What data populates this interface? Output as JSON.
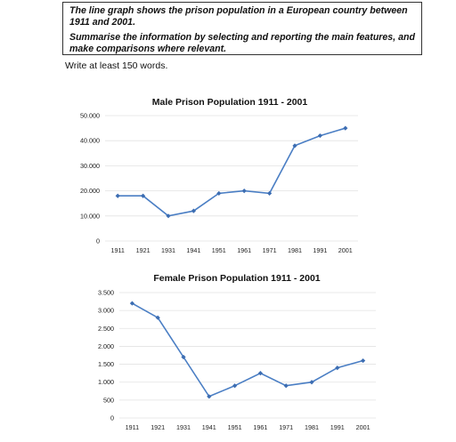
{
  "prompt": {
    "line1": "The line graph shows the prison population in a European country between 1911 and 2001.",
    "line2": "Summarise the information by selecting and reporting the main features, and make comparisons where relevant."
  },
  "instruction": "Write at least 150 words.",
  "colors": {
    "line": "#4a7ec4",
    "marker": "#3c6db2",
    "grid": "#e2e2e2"
  },
  "chart_data": [
    {
      "type": "line",
      "title": "Male Prison Population 1911 - 2001",
      "xlabel": "",
      "ylabel": "",
      "x": [
        "1911",
        "1921",
        "1931",
        "1941",
        "1951",
        "1961",
        "1971",
        "1981",
        "1991",
        "2001"
      ],
      "values": [
        18000,
        18000,
        10000,
        12000,
        19000,
        20000,
        19000,
        38000,
        42000,
        45000
      ],
      "ylim": [
        0,
        50000
      ],
      "yticks": [
        0,
        10000,
        20000,
        30000,
        40000,
        50000
      ],
      "ytick_labels": [
        "0",
        "10.000",
        "20.000",
        "30.000",
        "40.000",
        "50.000"
      ],
      "grid": true,
      "legend": "none"
    },
    {
      "type": "line",
      "title": "Female Prison Population 1911 - 2001",
      "xlabel": "",
      "ylabel": "",
      "x": [
        "1911",
        "1921",
        "1931",
        "1941",
        "1951",
        "1961",
        "1971",
        "1981",
        "1991",
        "2001"
      ],
      "values": [
        3200,
        2800,
        1700,
        600,
        900,
        1250,
        900,
        1000,
        1400,
        1600
      ],
      "ylim": [
        0,
        3500
      ],
      "yticks": [
        0,
        500,
        1000,
        1500,
        2000,
        2500,
        3000,
        3500
      ],
      "ytick_labels": [
        "0",
        "500",
        "1.000",
        "1.500",
        "2.000",
        "2.500",
        "3.000",
        "3.500"
      ],
      "grid": true,
      "legend": "none"
    }
  ]
}
